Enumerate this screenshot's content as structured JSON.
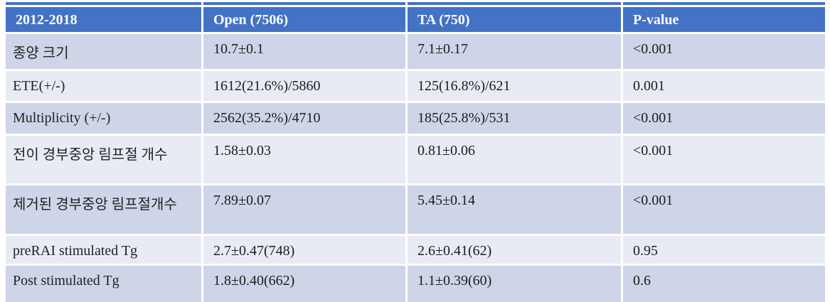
{
  "colors": {
    "header_bg": "#4472c4",
    "header_text": "#ffffff",
    "band_dark": "#cfd5e8",
    "band_light": "#e9ebf4",
    "body_text": "#1c1c1c",
    "page_bg": "#ffffff"
  },
  "table": {
    "columns": [
      {
        "label": "2012-2018"
      },
      {
        "label": "Open (7506)"
      },
      {
        "label": "TA (750)"
      },
      {
        "label": "P-value"
      }
    ],
    "rows": [
      {
        "label": "종양 크기",
        "open": "10.7±0.1",
        "ta": "7.1±0.17",
        "p": "<0.001"
      },
      {
        "label": "ETE(+/-)",
        "open": "1612(21.6%)/5860",
        "ta": "125(16.8%)/621",
        "p": "0.001"
      },
      {
        "label": "Multiplicity (+/-)",
        "open": "2562(35.2%)/4710",
        "ta": "185(25.8%)/531",
        "p": "<0.001"
      },
      {
        "label": "전이 경부중앙 림프절 개수",
        "open": "1.58±0.03",
        "ta": "0.81±0.06",
        "p": "<0.001"
      },
      {
        "label": "제거된 경부중앙 림프절개수",
        "open": "7.89±0.07",
        "ta": "5.45±0.14",
        "p": "<0.001"
      },
      {
        "label": "preRAI stimulated Tg",
        "open": "2.7±0.47(748)",
        "ta": "2.6±0.41(62)",
        "p": "0.95"
      },
      {
        "label": "Post stimulated Tg",
        "open": "1.8±0.40(662)",
        "ta": "1.1±0.39(60)",
        "p": "0.6"
      }
    ]
  }
}
